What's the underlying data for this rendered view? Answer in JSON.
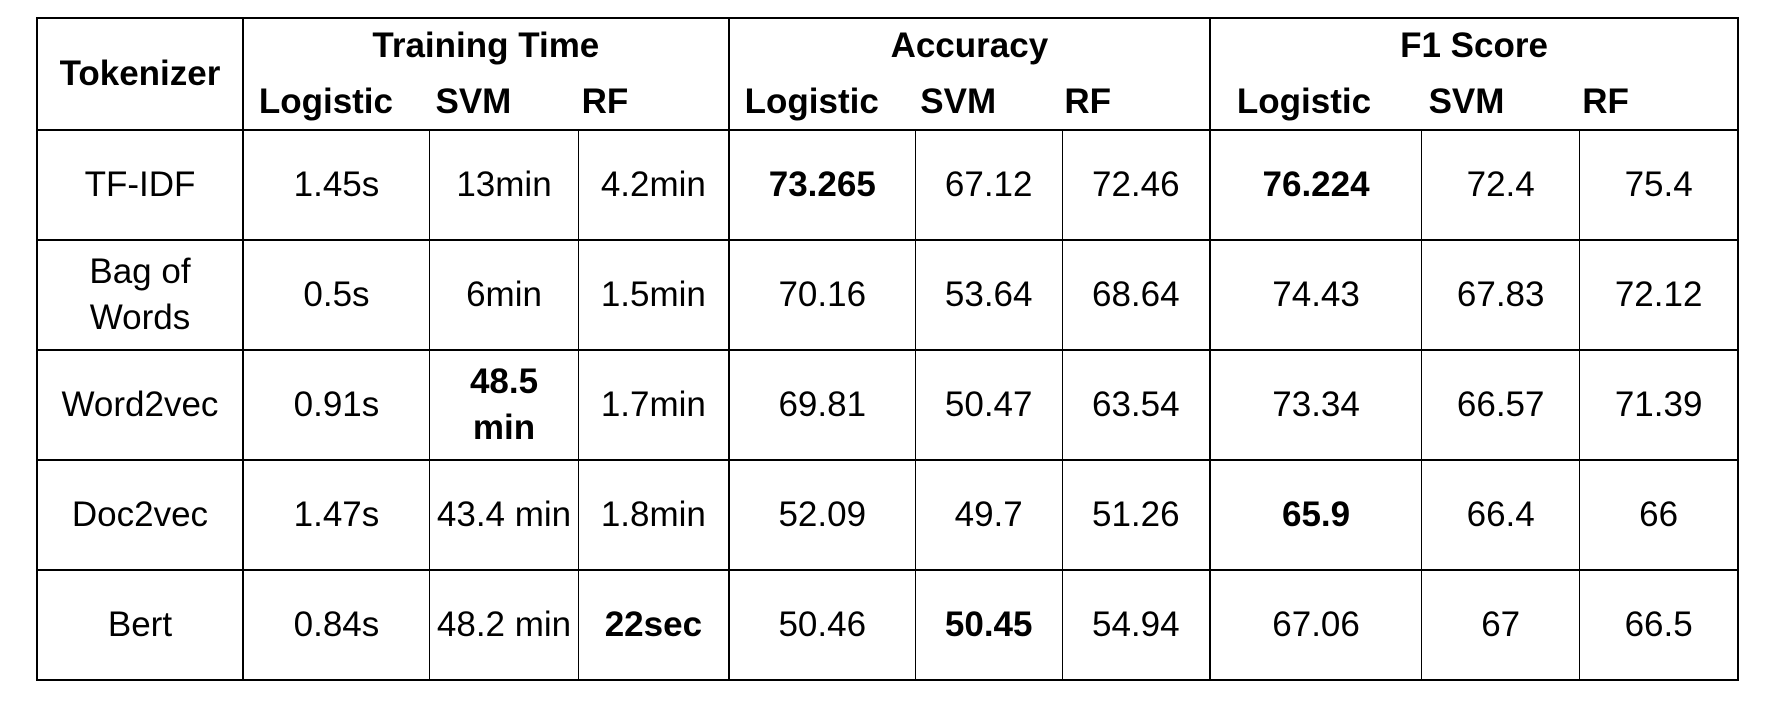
{
  "header": {
    "tokenizer": "Tokenizer",
    "groups": [
      {
        "title": "Training Time",
        "subs": [
          "Logistic",
          "SVM",
          "RF"
        ]
      },
      {
        "title": "Accuracy",
        "subs": [
          "Logistic",
          "SVM",
          "RF"
        ]
      },
      {
        "title": "F1 Score",
        "subs": [
          "Logistic",
          "SVM",
          "RF"
        ]
      }
    ]
  },
  "rows": [
    {
      "name": "TF-IDF",
      "cells": [
        "1.45s",
        "13min",
        "4.2min",
        "73.265",
        "67.12",
        "72.46",
        "76.224",
        "72.4",
        "75.4"
      ]
    },
    {
      "name": "Bag of Words",
      "cells": [
        "0.5s",
        "6min",
        "1.5min",
        "70.16",
        "53.64",
        "68.64",
        "74.43",
        "67.83",
        "72.12"
      ]
    },
    {
      "name": "Word2vec",
      "cells": [
        "0.91s",
        "48.5 min",
        "1.7min",
        "69.81",
        "50.47",
        "63.54",
        "73.34",
        "66.57",
        "71.39"
      ]
    },
    {
      "name": "Doc2vec",
      "cells": [
        "1.47s",
        "43.4 min",
        "1.8min",
        "52.09",
        "49.7",
        "51.26",
        "65.9",
        "66.4",
        "66"
      ]
    },
    {
      "name": "Bert",
      "cells": [
        "0.84s",
        "48.2 min",
        "22sec",
        "50.46",
        "50.45",
        "54.94",
        "67.06",
        "67",
        "66.5"
      ]
    }
  ]
}
